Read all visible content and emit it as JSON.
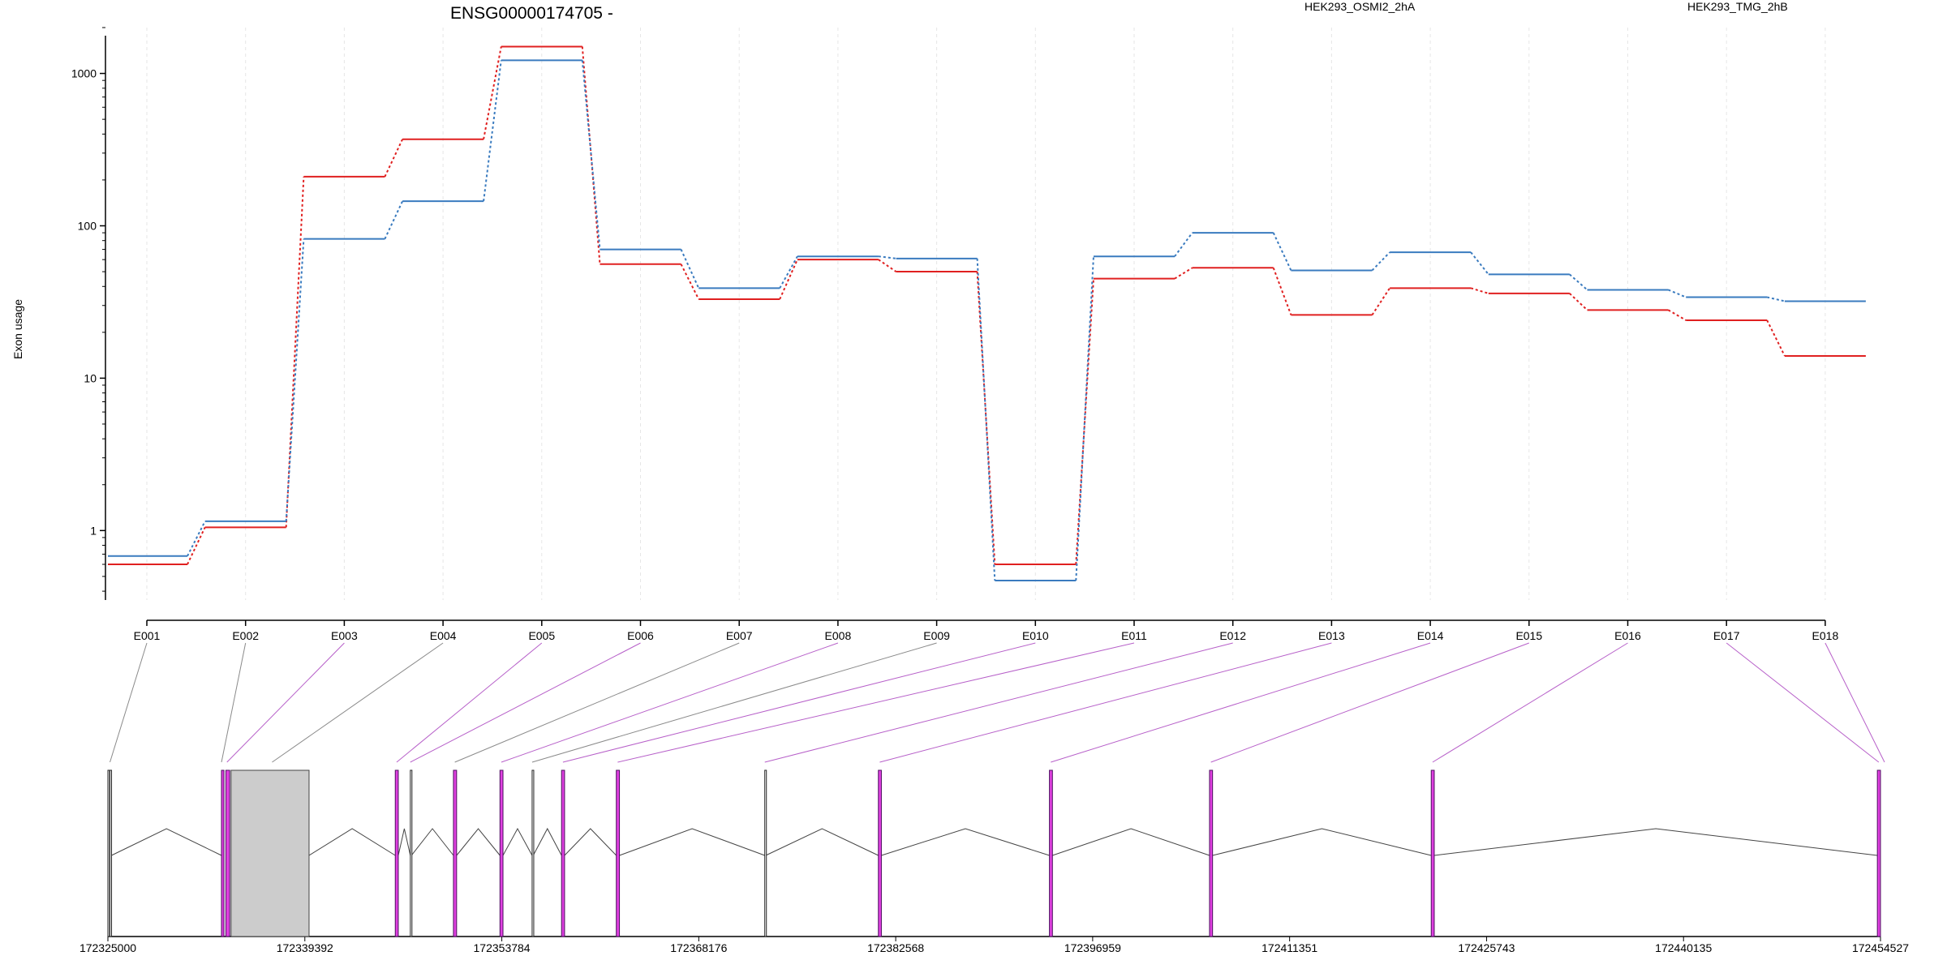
{
  "chart_data": {
    "type": "line",
    "title": "ENSG00000174705 -",
    "ylabel": "Exon usage",
    "xlabel": "",
    "yscale": "log",
    "ylim": [
      0.35,
      2000
    ],
    "yticks": [
      1,
      10,
      100,
      1000
    ],
    "ytick_labels": [
      "1",
      "10",
      "100",
      "1000"
    ],
    "categories": [
      "E001",
      "E002",
      "E003",
      "E004",
      "E005",
      "E006",
      "E007",
      "E008",
      "E009",
      "E010",
      "E011",
      "E012",
      "E013",
      "E014",
      "E015",
      "E016",
      "E017",
      "E018"
    ],
    "series": [
      {
        "name": "HEK293_OSMI2_2hA",
        "color": "#e02020",
        "values": [
          0.6,
          1.05,
          210,
          370,
          1500,
          56,
          33,
          60,
          50,
          0.6,
          45,
          53,
          26,
          39,
          36,
          28,
          24,
          14
        ]
      },
      {
        "name": "HEK293_TMG_2hB",
        "color": "#3a7bbf",
        "values": [
          0.68,
          1.15,
          82,
          145,
          1220,
          70,
          39,
          63,
          61,
          0.47,
          63,
          90,
          51,
          67,
          48,
          38,
          34,
          32
        ]
      }
    ],
    "grid": "vertical",
    "legend_placement": "top",
    "gene_model": {
      "coordinate_ticks": [
        172325000,
        172339392,
        172353784,
        172368176,
        172382568,
        172396959,
        172411351,
        172425743,
        172440135,
        172454527
      ],
      "range": [
        172325000,
        172454527
      ],
      "exon_bins": [
        {
          "start": 172325000,
          "end": 172325070,
          "type": "used"
        },
        {
          "start": 172325150,
          "end": 172325260,
          "type": "used"
        },
        {
          "start": 172333300,
          "end": 172333480,
          "type": "sig"
        },
        {
          "start": 172333620,
          "end": 172333900,
          "type": "sig"
        },
        {
          "start": 172334000,
          "end": 172339700,
          "type": "block"
        },
        {
          "start": 172346000,
          "end": 172346220,
          "type": "sig"
        },
        {
          "start": 172347100,
          "end": 172347180,
          "type": "used"
        },
        {
          "start": 172350250,
          "end": 172350480,
          "type": "sig"
        },
        {
          "start": 172353650,
          "end": 172353870,
          "type": "sig"
        },
        {
          "start": 172356000,
          "end": 172356080,
          "type": "used"
        },
        {
          "start": 172358150,
          "end": 172358370,
          "type": "sig"
        },
        {
          "start": 172362150,
          "end": 172362380,
          "type": "sig"
        },
        {
          "start": 172373000,
          "end": 172373070,
          "type": "used"
        },
        {
          "start": 172381300,
          "end": 172381520,
          "type": "sig"
        },
        {
          "start": 172393800,
          "end": 172394020,
          "type": "sig"
        },
        {
          "start": 172405500,
          "end": 172405720,
          "type": "sig"
        },
        {
          "start": 172421700,
          "end": 172421920,
          "type": "sig"
        },
        {
          "start": 172454300,
          "end": 172454527,
          "type": "sig"
        }
      ],
      "bin_links": [
        {
          "exon": "E001",
          "to": 172325150,
          "sig": false
        },
        {
          "exon": "E002",
          "to": 172333300,
          "sig": false
        },
        {
          "exon": "E003",
          "to": 172333700,
          "sig": true
        },
        {
          "exon": "E004",
          "to": 172337000,
          "sig": false
        },
        {
          "exon": "E005",
          "to": 172346100,
          "sig": true
        },
        {
          "exon": "E006",
          "to": 172347100,
          "sig": true
        },
        {
          "exon": "E007",
          "to": 172350350,
          "sig": false
        },
        {
          "exon": "E008",
          "to": 172353750,
          "sig": true
        },
        {
          "exon": "E009",
          "to": 172356000,
          "sig": false
        },
        {
          "exon": "E010",
          "to": 172358250,
          "sig": true
        },
        {
          "exon": "E011",
          "to": 172362250,
          "sig": true
        },
        {
          "exon": "E012",
          "to": 172373000,
          "sig": true
        },
        {
          "exon": "E013",
          "to": 172381400,
          "sig": true
        },
        {
          "exon": "E014",
          "to": 172393900,
          "sig": true
        },
        {
          "exon": "E015",
          "to": 172405600,
          "sig": true
        },
        {
          "exon": "E016",
          "to": 172421800,
          "sig": true
        },
        {
          "exon": "E017",
          "to": 172454400,
          "sig": true
        }
      ]
    }
  }
}
